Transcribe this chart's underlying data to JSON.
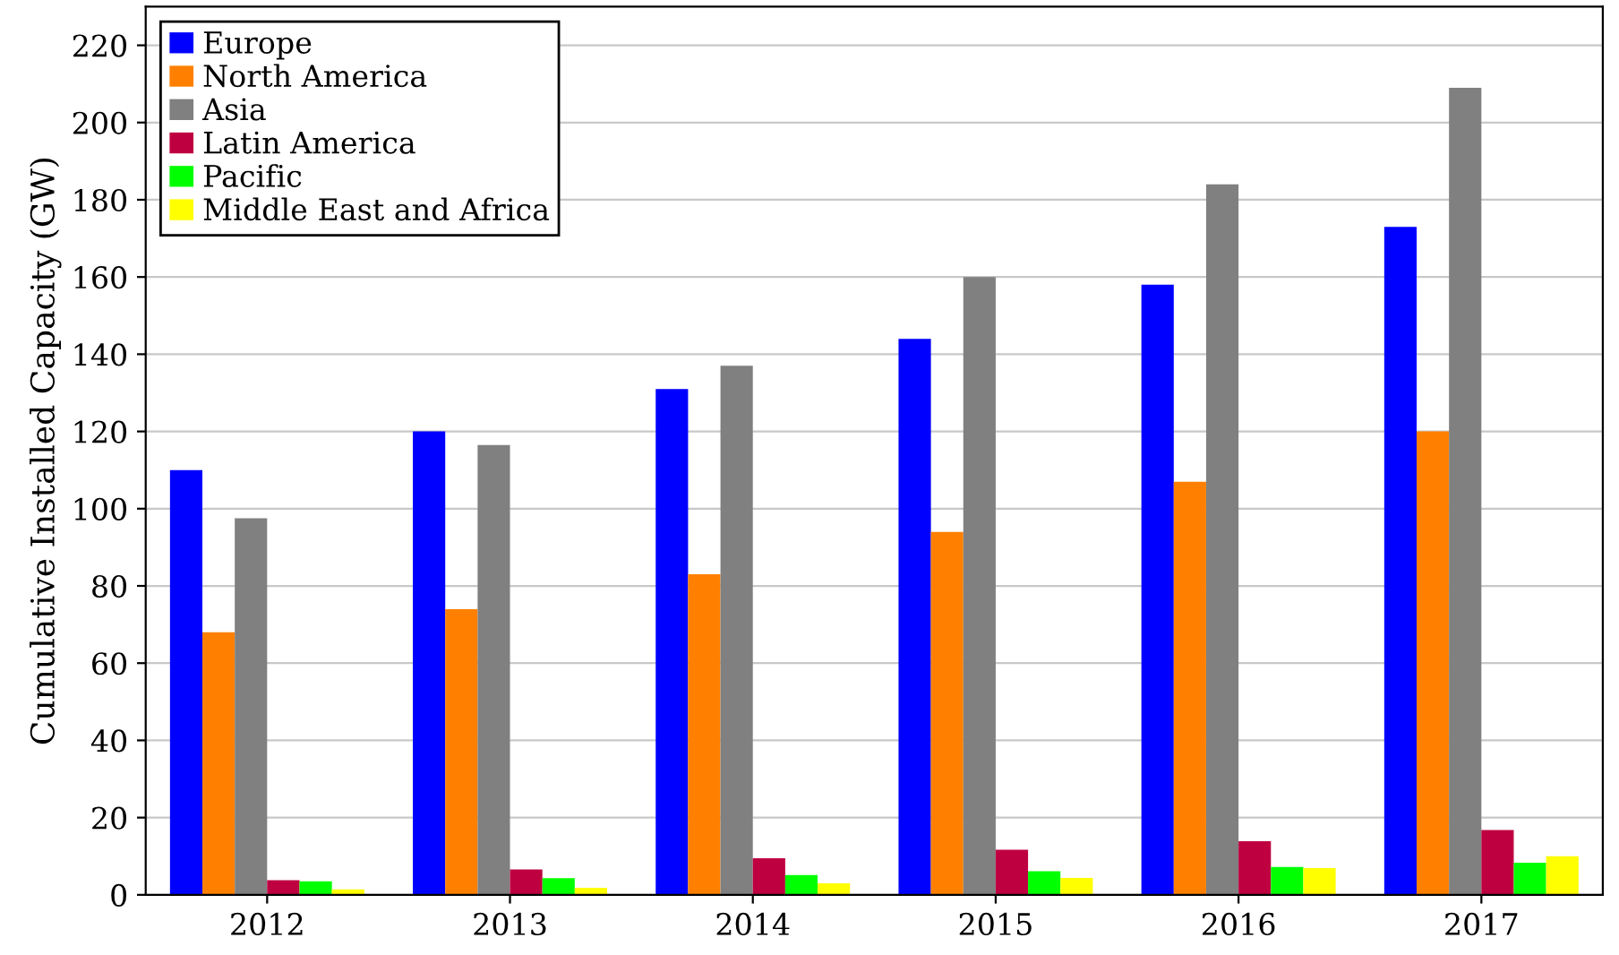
{
  "chart_data": {
    "type": "bar",
    "ylabel": "Cumulative Installed Capacity (GW)",
    "categories": [
      "2012",
      "2013",
      "2014",
      "2015",
      "2016",
      "2017"
    ],
    "series": [
      {
        "name": "Europe",
        "color": "#0000ff",
        "values": [
          110,
          120,
          131,
          144,
          158,
          173
        ]
      },
      {
        "name": "North America",
        "color": "#ff8000",
        "values": [
          68,
          74,
          83,
          94,
          107,
          120
        ]
      },
      {
        "name": "Asia",
        "color": "#808080",
        "values": [
          97.5,
          116.5,
          137,
          160,
          184,
          209
        ]
      },
      {
        "name": "Latin America",
        "color": "#bf0040",
        "values": [
          3.8,
          6.6,
          9.5,
          11.7,
          13.9,
          16.8
        ]
      },
      {
        "name": "Pacific",
        "color": "#00ff00",
        "values": [
          3.5,
          4.3,
          5.1,
          6.1,
          7.2,
          8.3
        ]
      },
      {
        "name": "Middle East and Africa",
        "color": "#ffff00",
        "values": [
          1.4,
          1.8,
          3.0,
          4.4,
          6.9,
          10
        ]
      }
    ],
    "ylim": [
      0,
      230
    ],
    "yticks": [
      0,
      20,
      40,
      60,
      80,
      100,
      120,
      140,
      160,
      180,
      200,
      220
    ],
    "grid": "y",
    "legend": "top left"
  }
}
